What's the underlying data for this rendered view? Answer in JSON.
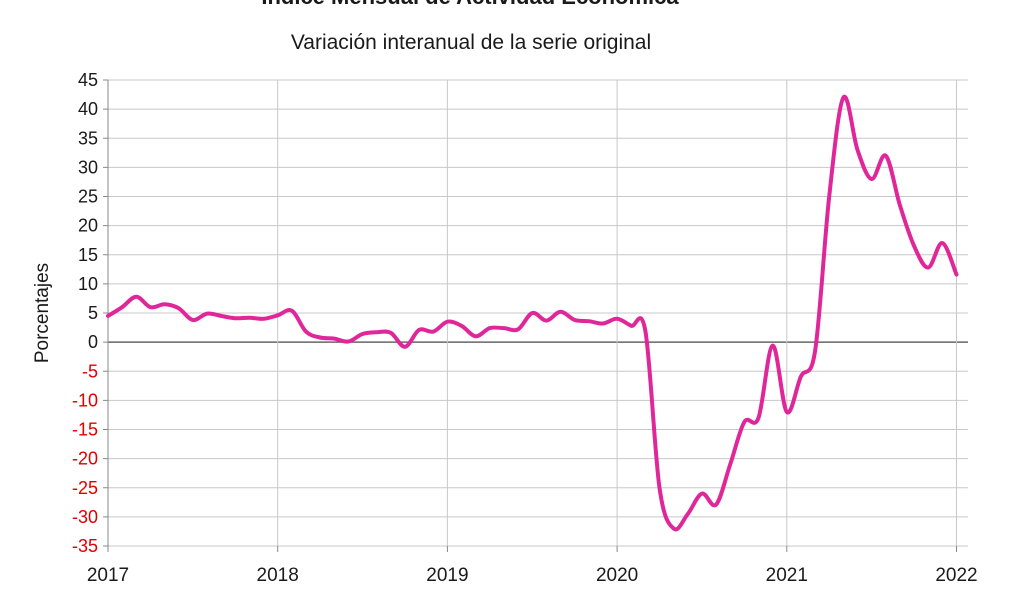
{
  "chart_data": {
    "type": "line",
    "title": "Índice Mensual de Actividad Económica",
    "subtitle": "Variación interanual de la serie original",
    "ylabel": "Porcentajes",
    "xlabel": "",
    "ylim": [
      -35,
      45
    ],
    "yticks": [
      45,
      40,
      35,
      30,
      25,
      20,
      15,
      10,
      5,
      0,
      -5,
      -10,
      -15,
      -20,
      -25,
      -30,
      -35
    ],
    "x_tick_labels": [
      "2017",
      "2018",
      "2019",
      "2020",
      "2021",
      "2022"
    ],
    "grid": true,
    "legend": "none",
    "colors": {
      "series": "#E0279A",
      "positive_ticks": "#1a1a1a",
      "negative_ticks": "#E00000",
      "grid": "#c8c8c8",
      "zero_line": "#666666"
    },
    "series": [
      {
        "x": [
          "2017-01",
          "2017-02",
          "2017-03",
          "2017-04",
          "2017-05",
          "2017-06",
          "2017-07",
          "2017-08",
          "2017-09",
          "2017-10",
          "2017-11",
          "2017-12",
          "2018-01",
          "2018-02",
          "2018-03",
          "2018-04",
          "2018-05",
          "2018-06",
          "2018-07",
          "2018-08",
          "2018-09",
          "2018-10",
          "2018-11",
          "2018-12",
          "2019-01",
          "2019-02",
          "2019-03",
          "2019-04",
          "2019-05",
          "2019-06",
          "2019-07",
          "2019-08",
          "2019-09",
          "2019-10",
          "2019-11",
          "2019-12",
          "2020-01",
          "2020-02",
          "2020-03",
          "2020-04",
          "2020-05",
          "2020-06",
          "2020-07",
          "2020-08",
          "2020-09",
          "2020-10",
          "2020-11",
          "2020-12",
          "2021-01",
          "2021-02",
          "2021-03",
          "2021-04",
          "2021-05",
          "2021-06",
          "2021-07",
          "2021-08",
          "2021-09",
          "2021-10",
          "2021-11",
          "2021-12",
          "2022-01"
        ],
        "values": [
          4.5,
          6.0,
          7.8,
          6.0,
          6.5,
          5.8,
          3.8,
          4.9,
          4.5,
          4.1,
          4.2,
          4.0,
          4.6,
          5.4,
          1.8,
          0.8,
          0.6,
          0.1,
          1.4,
          1.7,
          1.6,
          -0.8,
          2.1,
          1.8,
          3.5,
          2.8,
          1.0,
          2.4,
          2.4,
          2.2,
          5.0,
          3.7,
          5.2,
          3.8,
          3.6,
          3.2,
          4.0,
          2.8,
          1.9,
          -25.0,
          -32.0,
          -29.5,
          -26.0,
          -27.9,
          -21.0,
          -13.7,
          -13.0,
          -0.6,
          -12.0,
          -5.9,
          -1.5,
          25.0,
          42.0,
          33.0,
          28.0,
          32.0,
          23.5,
          16.5,
          12.8,
          17.0,
          11.6
        ]
      }
    ]
  }
}
